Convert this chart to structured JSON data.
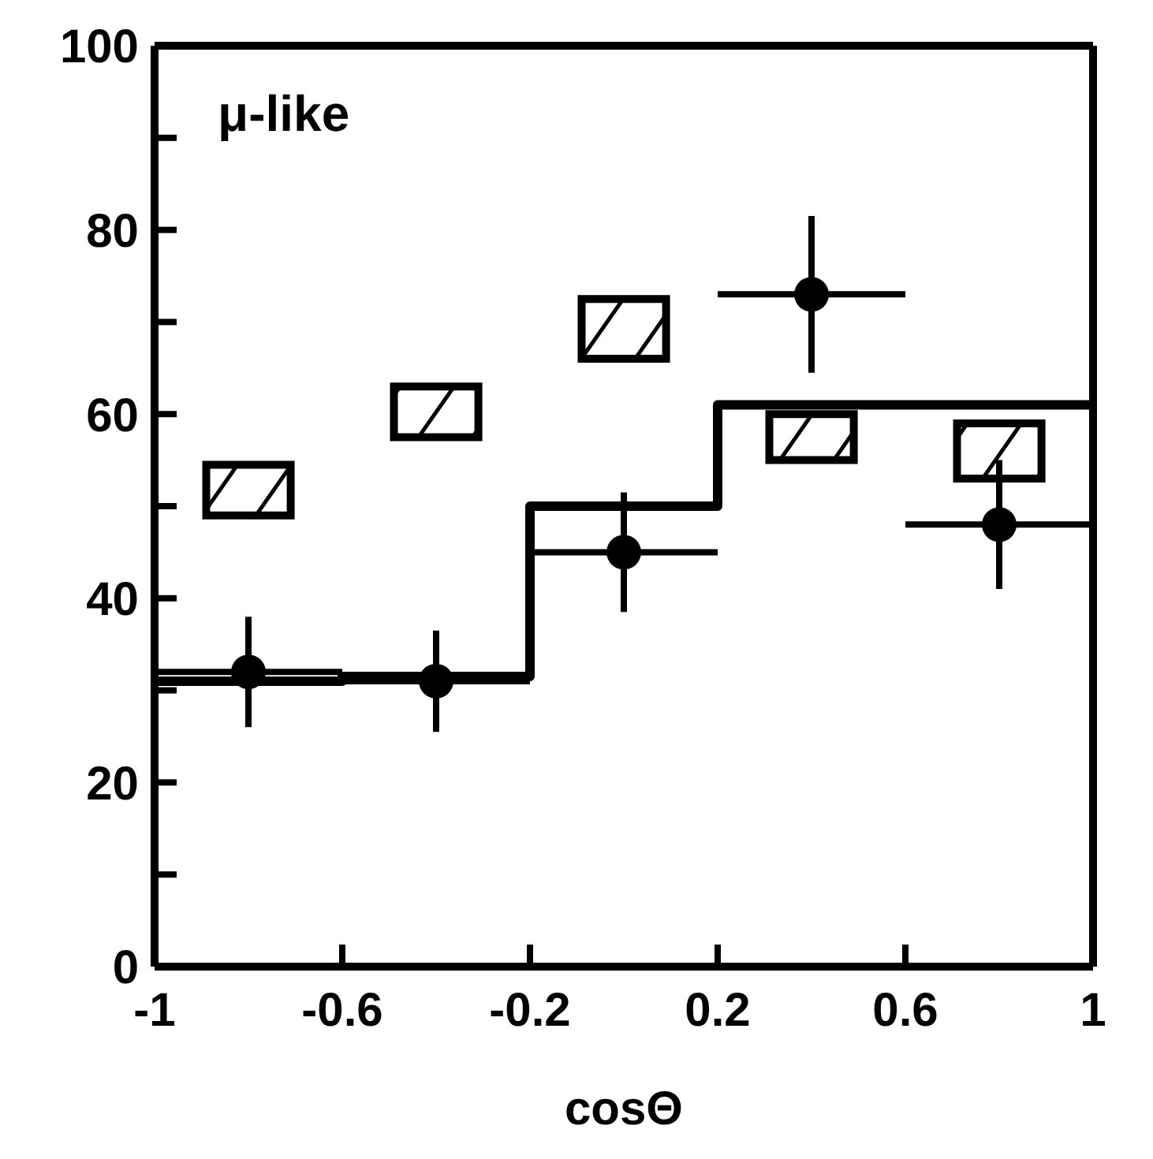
{
  "chart_data": {
    "type": "bar",
    "xlabel": "cosΘ",
    "annotations": [
      "μ-like"
    ],
    "xlim": [
      -1,
      1
    ],
    "xticks": [
      -1,
      -0.6,
      -0.2,
      0.2,
      0.6,
      1
    ],
    "ylim": [
      0,
      100
    ],
    "yticks": [
      0,
      {
        "value": 10,
        "label": null
      },
      20,
      {
        "value": 30,
        "label": null
      },
      40,
      {
        "value": 50,
        "label": null
      },
      60,
      {
        "value": 70,
        "label": null
      },
      80,
      {
        "value": 90,
        "label": null
      },
      100
    ],
    "legend": false,
    "series": [
      {
        "color": "#000000",
        "x": [
          -0.8,
          -0.4,
          0,
          0.4,
          0.8
        ],
        "base": [
          49,
          57.5,
          66,
          55,
          53
        ],
        "values": [
          5.5,
          5.5,
          6.5,
          5,
          6
        ]
      },
      {
        "type": "step",
        "color": "#000000",
        "x": [
          -1,
          -0.6,
          -0.2,
          0.2,
          0.6,
          1
        ],
        "values": [
          31,
          31.5,
          50,
          61,
          61,
          61
        ]
      },
      {
        "type": "scatter",
        "color": "#000000",
        "marker": "circle",
        "x": [
          -0.8,
          -0.4,
          0,
          0.4,
          0.8
        ],
        "values": [
          32,
          31,
          45,
          73,
          48
        ],
        "errors": [
          6,
          5.5,
          6.5,
          8.5,
          7
        ],
        "xerrors": [
          0.2,
          0.2,
          0.2,
          0.2,
          0.2
        ]
      }
    ]
  }
}
